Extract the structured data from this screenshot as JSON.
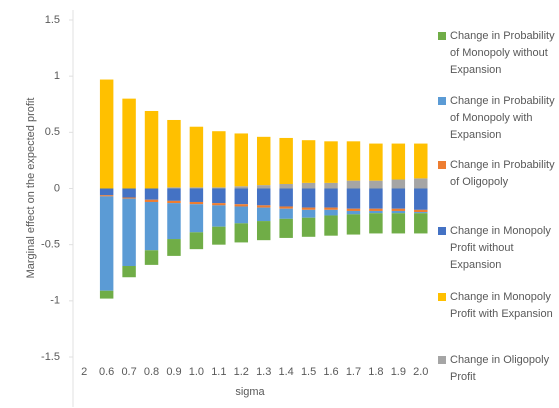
{
  "chart_data": {
    "type": "stacked_bar",
    "x_label": "sigma",
    "y_label": "Marginal effect on the expected profit",
    "categories": [
      "2",
      "0.6",
      "0.7",
      "0.8",
      "0.9",
      "1.0",
      "1.1",
      "1.2",
      "1.3",
      "1.4",
      "1.5",
      "1.6",
      "1.7",
      "1.8",
      "1.9",
      "2.0"
    ],
    "ylim": [
      -1.5,
      1.5
    ],
    "yticks": [
      -1.5,
      -1,
      -0.5,
      0,
      0.5,
      1,
      1.5
    ],
    "legend": "right",
    "series": [
      {
        "name": "Change in Probability of Monopoly without Expansion",
        "color": "#70ad47",
        "values": [
          null,
          -0.07,
          -0.1,
          -0.13,
          -0.15,
          -0.15,
          -0.16,
          -0.17,
          -0.17,
          -0.17,
          -0.17,
          -0.18,
          -0.18,
          -0.18,
          -0.18,
          -0.18
        ]
      },
      {
        "name": "Change in Probability of Monopoly with Expansion",
        "color": "#5b9bd5",
        "values": [
          null,
          -0.84,
          -0.6,
          -0.43,
          -0.32,
          -0.25,
          -0.19,
          -0.15,
          -0.12,
          -0.09,
          -0.07,
          -0.05,
          -0.03,
          -0.02,
          -0.02,
          -0.01
        ]
      },
      {
        "name": "Change in Probability of Oligopoly",
        "color": "#ed7d31",
        "values": [
          null,
          -0.01,
          -0.01,
          -0.02,
          -0.02,
          -0.02,
          -0.02,
          -0.02,
          -0.02,
          -0.02,
          -0.02,
          -0.02,
          -0.02,
          -0.02,
          -0.02,
          -0.02
        ]
      },
      {
        "name": "Change in Monopoly Profit without Expansion",
        "color": "#4472c4",
        "values": [
          null,
          -0.06,
          -0.08,
          -0.1,
          -0.11,
          -0.12,
          -0.13,
          -0.14,
          -0.15,
          -0.16,
          -0.17,
          -0.17,
          -0.18,
          -0.18,
          -0.18,
          -0.19
        ]
      },
      {
        "name": "Change in Monopoly Profit with Expansion",
        "color": "#ffc000",
        "values": [
          null,
          0.97,
          0.8,
          0.69,
          0.6,
          0.54,
          0.5,
          0.47,
          0.43,
          0.41,
          0.38,
          0.37,
          0.35,
          0.33,
          0.32,
          0.31
        ]
      },
      {
        "name": "Change in Oligopoly Profit",
        "color": "#a5a5a5",
        "values": [
          null,
          0,
          0,
          0,
          0.01,
          0.01,
          0.01,
          0.02,
          0.03,
          0.04,
          0.05,
          0.05,
          0.07,
          0.07,
          0.08,
          0.09
        ]
      }
    ]
  }
}
